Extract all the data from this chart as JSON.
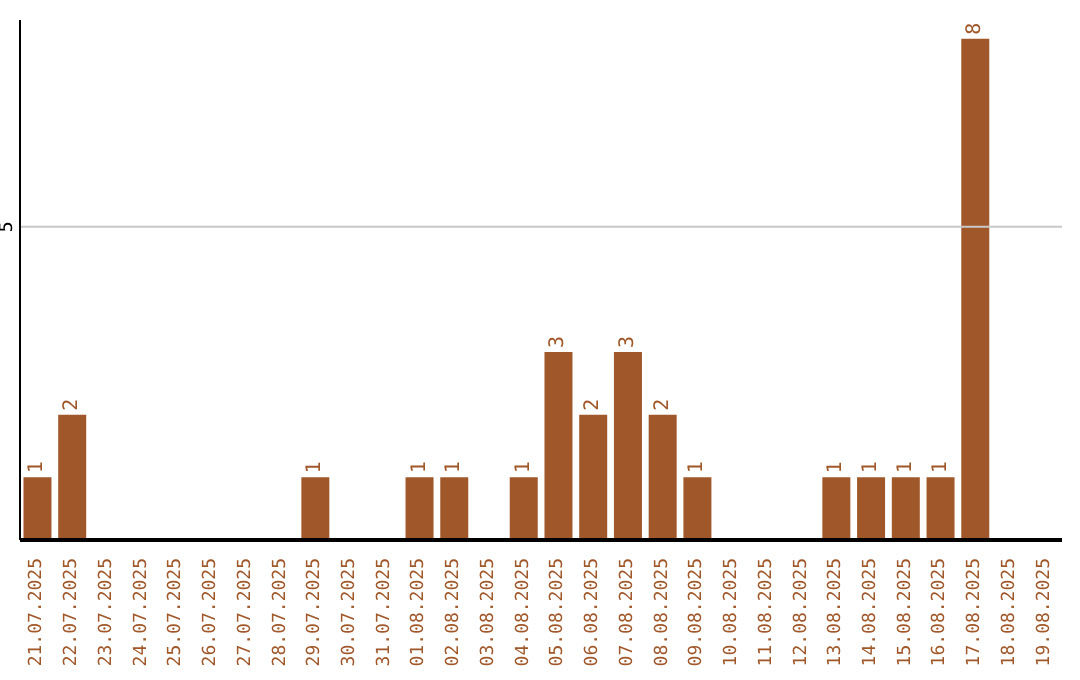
{
  "chart_data": {
    "type": "bar",
    "categories": [
      "21.07.2025",
      "22.07.2025",
      "23.07.2025",
      "24.07.2025",
      "25.07.2025",
      "26.07.2025",
      "27.07.2025",
      "28.07.2025",
      "29.07.2025",
      "30.07.2025",
      "31.07.2025",
      "01.08.2025",
      "02.08.2025",
      "03.08.2025",
      "04.08.2025",
      "05.08.2025",
      "06.08.2025",
      "07.08.2025",
      "08.08.2025",
      "09.08.2025",
      "10.08.2025",
      "11.08.2025",
      "12.08.2025",
      "13.08.2025",
      "14.08.2025",
      "15.08.2025",
      "16.08.2025",
      "17.08.2025",
      "18.08.2025",
      "19.08.2025"
    ],
    "values": [
      1,
      2,
      0,
      0,
      0,
      0,
      0,
      0,
      1,
      0,
      0,
      1,
      1,
      0,
      1,
      3,
      2,
      3,
      2,
      1,
      0,
      0,
      0,
      1,
      1,
      1,
      1,
      8,
      0,
      0
    ],
    "value_labels": [
      "1",
      "2",
      null,
      null,
      null,
      null,
      null,
      null,
      "1",
      null,
      null,
      "1",
      "1",
      null,
      "1",
      "3",
      "2",
      "3",
      "2",
      "1",
      null,
      null,
      null,
      "1",
      "1",
      "1",
      "1",
      "8",
      null,
      null
    ],
    "color": "#a0582a",
    "ylim": [
      0,
      8.3
    ],
    "yticks": [
      5
    ],
    "grid": "y"
  }
}
